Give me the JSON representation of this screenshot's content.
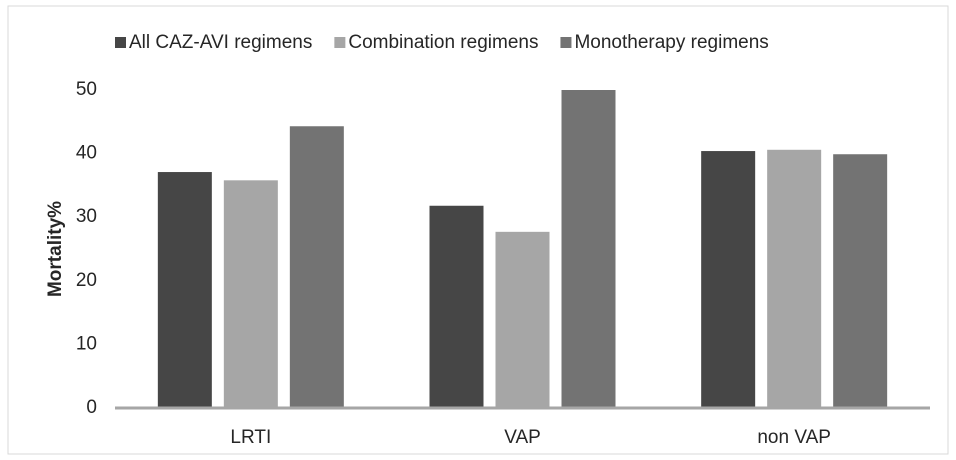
{
  "chart_data": {
    "type": "bar",
    "y_label": "Mortality%",
    "categories": [
      "LRTI",
      "VAP",
      "non VAP"
    ],
    "series": [
      {
        "name": "All CAZ-AVI regimens",
        "color": "#464646",
        "values": [
          37.1,
          31.8,
          40.4
        ]
      },
      {
        "name": "Combination regimens",
        "color": "#a6a6a6",
        "values": [
          35.8,
          27.7,
          40.6
        ]
      },
      {
        "name": "Monotherapy regimens",
        "color": "#737373",
        "values": [
          44.3,
          50,
          39.9
        ]
      }
    ],
    "ylim": [
      0,
      50
    ],
    "yticks": [
      0,
      10,
      20,
      30,
      40,
      50
    ],
    "grid": false,
    "legend": "top"
  }
}
